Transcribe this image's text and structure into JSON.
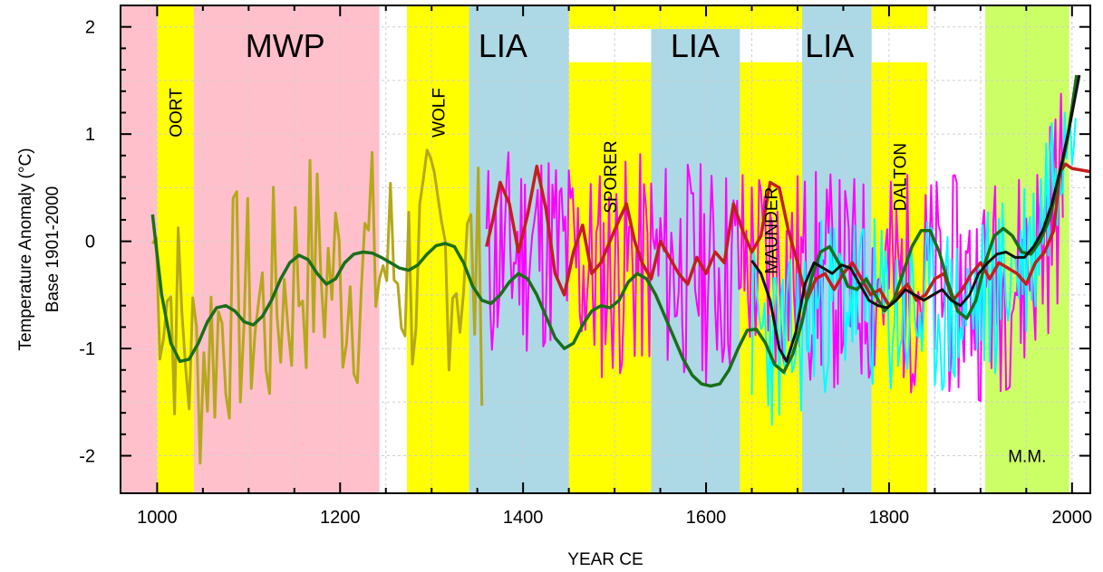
{
  "chart_data": {
    "type": "line",
    "title": "",
    "xlabel": "YEAR CE",
    "ylabel_line1": "Temperature Anomaly (°C)",
    "ylabel_line2": "Base 1901-2000",
    "xlim": [
      960,
      2020
    ],
    "ylim": [
      -2.35,
      2.2
    ],
    "x_ticks": [
      1000,
      1200,
      1400,
      1600,
      1800,
      2000
    ],
    "y_ticks": [
      -2,
      -1,
      0,
      1,
      2
    ],
    "grid": true,
    "legend": "none",
    "bands": [
      {
        "name": "",
        "start": 960,
        "end": 1000,
        "color": "#ffc0cb"
      },
      {
        "name": "OORT",
        "start": 1000,
        "end": 1040,
        "color": "#ffff00",
        "label_style": "vertical",
        "label_y": 1.2
      },
      {
        "name": "MWP",
        "start": 1040,
        "end": 1243,
        "color": "#ffc0cb",
        "label_style": "big",
        "label_year": 1140
      },
      {
        "name": "",
        "start": 1243,
        "end": 1273,
        "color": "#ffffff"
      },
      {
        "name": "WOLF",
        "start": 1273,
        "end": 1341,
        "color": "#ffff00",
        "label_style": "vertical",
        "label_y": 1.2
      },
      {
        "name": "LIA",
        "start": 1341,
        "end": 1450,
        "color": "#add8e6",
        "label_style": "big",
        "label_year": 1378
      },
      {
        "name": "SPORER",
        "start": 1450,
        "end": 1540,
        "color": "#ffff00",
        "top_y": 1.67,
        "label_style": "vertical",
        "label_y": 0.6
      },
      {
        "name": "LIA",
        "start": 1540,
        "end": 1637,
        "color": "#add8e6",
        "label_style": "big",
        "label_year": 1588
      },
      {
        "name": "MAUNDER",
        "start": 1637,
        "end": 1705,
        "color": "#ffff00",
        "top_y": 1.67,
        "label_style": "vertical",
        "label_y": 0.1
      },
      {
        "name": "LIA",
        "start": 1705,
        "end": 1781,
        "color": "#add8e6",
        "label_style": "big",
        "label_year": 1735
      },
      {
        "name": "DALTON",
        "start": 1781,
        "end": 1842,
        "color": "#ffff00",
        "top_y": 1.67,
        "label_style": "vertical",
        "label_y": 0.6
      },
      {
        "name": "",
        "start": 1842,
        "end": 1905,
        "color": "#ffffff"
      },
      {
        "name": "M.M.",
        "start": 1905,
        "end": 1997,
        "color": "#ccff66",
        "label_style": "small",
        "label_y": -2.0
      }
    ],
    "top_strips": [
      {
        "start": 1450,
        "end": 1637,
        "color": "#ffff00",
        "y_from": 2.2,
        "y_to": 1.98
      },
      {
        "start": 1637,
        "end": 1705,
        "color": "#ffff00",
        "y_from": 2.2,
        "y_to": 1.98
      },
      {
        "start": 1781,
        "end": 1842,
        "color": "#ffff00",
        "y_from": 2.2,
        "y_to": 1.98
      }
    ],
    "series": [
      {
        "color": "#b5a81a",
        "width": 3,
        "kind": "noise",
        "x_start": 995,
        "x_end": 1355,
        "step": 4,
        "amp": 1.15,
        "seed": 7,
        "anchors": [
          [
            995,
            0.0
          ],
          [
            1040,
            -1.2
          ],
          [
            1080,
            -0.6
          ],
          [
            1120,
            -0.7
          ],
          [
            1160,
            -0.2
          ],
          [
            1200,
            -0.35
          ],
          [
            1240,
            -0.2
          ],
          [
            1280,
            -0.3
          ],
          [
            1320,
            -0.1
          ],
          [
            1355,
            -0.4
          ]
        ]
      },
      {
        "color": "#ff00ff",
        "width": 2,
        "kind": "noise",
        "x_start": 1360,
        "x_end": 1990,
        "step": 2,
        "amp": 1.05,
        "seed": 11,
        "anchors": [
          [
            1360,
            -0.2
          ],
          [
            1420,
            0.0
          ],
          [
            1480,
            -0.3
          ],
          [
            1540,
            -0.2
          ],
          [
            1600,
            -0.3
          ],
          [
            1650,
            -0.2
          ],
          [
            1700,
            -0.3
          ],
          [
            1750,
            -0.4
          ],
          [
            1800,
            -0.35
          ],
          [
            1850,
            -0.4
          ],
          [
            1900,
            -0.45
          ],
          [
            1950,
            -0.3
          ],
          [
            1990,
            0.5
          ]
        ]
      },
      {
        "color": "#00ffff",
        "width": 2,
        "kind": "noise",
        "x_start": 1650,
        "x_end": 2005,
        "step": 2,
        "amp": 0.85,
        "seed": 23,
        "anchors": [
          [
            1650,
            -0.8
          ],
          [
            1690,
            -1.0
          ],
          [
            1720,
            -0.6
          ],
          [
            1760,
            -0.5
          ],
          [
            1800,
            -0.7
          ],
          [
            1850,
            -0.65
          ],
          [
            1880,
            -0.7
          ],
          [
            1920,
            -0.4
          ],
          [
            1960,
            0.0
          ],
          [
            1990,
            1.2
          ],
          [
            2005,
            1.7
          ]
        ]
      },
      {
        "color": "#c41e1e",
        "width": 3.5,
        "kind": "line",
        "points": [
          [
            1360,
            -0.05
          ],
          [
            1367,
            0.2
          ],
          [
            1375,
            0.55
          ],
          [
            1385,
            0.35
          ],
          [
            1395,
            -0.1
          ],
          [
            1405,
            0.25
          ],
          [
            1415,
            0.7
          ],
          [
            1425,
            0.3
          ],
          [
            1435,
            -0.3
          ],
          [
            1445,
            -0.5
          ],
          [
            1455,
            -0.1
          ],
          [
            1465,
            0.15
          ],
          [
            1475,
            -0.3
          ],
          [
            1485,
            -0.2
          ],
          [
            1495,
            0.0
          ],
          [
            1505,
            0.2
          ],
          [
            1513,
            0.35
          ],
          [
            1522,
            0.0
          ],
          [
            1530,
            -0.2
          ],
          [
            1540,
            -0.35
          ],
          [
            1550,
            0.0
          ],
          [
            1560,
            -0.15
          ],
          [
            1570,
            -0.3
          ],
          [
            1580,
            -0.4
          ],
          [
            1590,
            -0.15
          ],
          [
            1600,
            -0.3
          ],
          [
            1610,
            -0.1
          ],
          [
            1620,
            -0.2
          ],
          [
            1630,
            0.35
          ],
          [
            1640,
            0.1
          ],
          [
            1650,
            -0.1
          ],
          [
            1660,
            0.05
          ],
          [
            1670,
            0.55
          ],
          [
            1680,
            0.5
          ],
          [
            1690,
            0.1
          ],
          [
            1700,
            -0.2
          ],
          [
            1710,
            -0.55
          ],
          [
            1720,
            -0.35
          ],
          [
            1730,
            -0.3
          ],
          [
            1740,
            -0.45
          ],
          [
            1750,
            -0.3
          ],
          [
            1760,
            -0.2
          ],
          [
            1770,
            -0.35
          ],
          [
            1780,
            -0.5
          ],
          [
            1790,
            -0.45
          ],
          [
            1800,
            -0.6
          ],
          [
            1810,
            -0.5
          ],
          [
            1820,
            -0.4
          ],
          [
            1830,
            -0.55
          ],
          [
            1840,
            -0.5
          ],
          [
            1850,
            -0.35
          ],
          [
            1860,
            -0.3
          ],
          [
            1870,
            -0.55
          ],
          [
            1880,
            -0.45
          ],
          [
            1890,
            -0.3
          ],
          [
            1900,
            -0.2
          ],
          [
            1910,
            -0.35
          ],
          [
            1920,
            -0.2
          ],
          [
            1930,
            -0.25
          ],
          [
            1940,
            -0.3
          ],
          [
            1950,
            -0.4
          ],
          [
            1960,
            -0.2
          ],
          [
            1970,
            -0.1
          ],
          [
            1980,
            0.1
          ],
          [
            1987,
            0.65
          ],
          [
            1993,
            0.72
          ],
          [
            2000,
            0.68
          ],
          [
            2020,
            0.65
          ]
        ]
      },
      {
        "color": "#1a6e1a",
        "width": 3.5,
        "kind": "line",
        "points": [
          [
            995,
            0.25
          ],
          [
            1005,
            -0.5
          ],
          [
            1015,
            -0.95
          ],
          [
            1025,
            -1.12
          ],
          [
            1035,
            -1.1
          ],
          [
            1045,
            -0.95
          ],
          [
            1055,
            -0.75
          ],
          [
            1065,
            -0.62
          ],
          [
            1075,
            -0.6
          ],
          [
            1085,
            -0.65
          ],
          [
            1095,
            -0.75
          ],
          [
            1105,
            -0.78
          ],
          [
            1115,
            -0.7
          ],
          [
            1125,
            -0.55
          ],
          [
            1135,
            -0.35
          ],
          [
            1145,
            -0.2
          ],
          [
            1155,
            -0.13
          ],
          [
            1165,
            -0.17
          ],
          [
            1175,
            -0.3
          ],
          [
            1185,
            -0.4
          ],
          [
            1195,
            -0.35
          ],
          [
            1205,
            -0.2
          ],
          [
            1215,
            -0.12
          ],
          [
            1225,
            -0.1
          ],
          [
            1235,
            -0.11
          ],
          [
            1245,
            -0.15
          ],
          [
            1255,
            -0.2
          ],
          [
            1265,
            -0.25
          ],
          [
            1275,
            -0.27
          ],
          [
            1285,
            -0.22
          ],
          [
            1295,
            -0.12
          ],
          [
            1305,
            -0.04
          ],
          [
            1315,
            -0.02
          ],
          [
            1325,
            -0.05
          ],
          [
            1335,
            -0.2
          ],
          [
            1345,
            -0.42
          ],
          [
            1355,
            -0.55
          ],
          [
            1365,
            -0.58
          ],
          [
            1375,
            -0.5
          ],
          [
            1385,
            -0.38
          ],
          [
            1395,
            -0.3
          ],
          [
            1405,
            -0.35
          ],
          [
            1415,
            -0.5
          ],
          [
            1425,
            -0.7
          ],
          [
            1435,
            -0.9
          ],
          [
            1445,
            -1.0
          ],
          [
            1455,
            -0.95
          ],
          [
            1465,
            -0.78
          ],
          [
            1475,
            -0.65
          ],
          [
            1485,
            -0.6
          ],
          [
            1495,
            -0.62
          ],
          [
            1505,
            -0.55
          ],
          [
            1515,
            -0.38
          ],
          [
            1525,
            -0.3
          ],
          [
            1535,
            -0.35
          ],
          [
            1545,
            -0.5
          ],
          [
            1555,
            -0.7
          ],
          [
            1565,
            -0.9
          ],
          [
            1575,
            -1.1
          ],
          [
            1585,
            -1.25
          ],
          [
            1595,
            -1.33
          ],
          [
            1605,
            -1.35
          ],
          [
            1615,
            -1.33
          ],
          [
            1625,
            -1.2
          ],
          [
            1635,
            -1.0
          ],
          [
            1645,
            -0.83
          ],
          [
            1655,
            -0.82
          ],
          [
            1665,
            -0.95
          ],
          [
            1675,
            -1.15
          ],
          [
            1685,
            -1.22
          ],
          [
            1695,
            -1.05
          ],
          [
            1705,
            -0.75
          ],
          [
            1715,
            -0.35
          ],
          [
            1725,
            -0.1
          ],
          [
            1735,
            -0.05
          ],
          [
            1745,
            -0.2
          ],
          [
            1755,
            -0.42
          ],
          [
            1765,
            -0.45
          ],
          [
            1775,
            -0.35
          ],
          [
            1785,
            -0.5
          ],
          [
            1795,
            -0.65
          ],
          [
            1805,
            -0.55
          ],
          [
            1815,
            -0.3
          ],
          [
            1825,
            -0.05
          ],
          [
            1835,
            0.1
          ],
          [
            1845,
            0.1
          ],
          [
            1855,
            -0.1
          ],
          [
            1865,
            -0.4
          ],
          [
            1875,
            -0.65
          ],
          [
            1885,
            -0.72
          ],
          [
            1895,
            -0.55
          ],
          [
            1905,
            -0.2
          ],
          [
            1915,
            0.05
          ],
          [
            1925,
            0.12
          ],
          [
            1935,
            0.05
          ],
          [
            1945,
            -0.1
          ],
          [
            1955,
            -0.12
          ],
          [
            1965,
            0.0
          ],
          [
            1975,
            0.2
          ],
          [
            1985,
            0.55
          ],
          [
            1995,
            0.95
          ],
          [
            2005,
            1.55
          ]
        ]
      },
      {
        "color": "#111111",
        "width": 3,
        "kind": "line",
        "points": [
          [
            1650,
            -0.18
          ],
          [
            1660,
            -0.3
          ],
          [
            1670,
            -0.55
          ],
          [
            1680,
            -1.0
          ],
          [
            1688,
            -1.12
          ],
          [
            1698,
            -0.85
          ],
          [
            1708,
            -0.4
          ],
          [
            1718,
            -0.2
          ],
          [
            1728,
            -0.25
          ],
          [
            1738,
            -0.3
          ],
          [
            1748,
            -0.22
          ],
          [
            1758,
            -0.25
          ],
          [
            1768,
            -0.4
          ],
          [
            1778,
            -0.55
          ],
          [
            1788,
            -0.6
          ],
          [
            1798,
            -0.62
          ],
          [
            1808,
            -0.55
          ],
          [
            1818,
            -0.45
          ],
          [
            1828,
            -0.5
          ],
          [
            1838,
            -0.55
          ],
          [
            1848,
            -0.5
          ],
          [
            1858,
            -0.45
          ],
          [
            1868,
            -0.55
          ],
          [
            1878,
            -0.6
          ],
          [
            1888,
            -0.5
          ],
          [
            1898,
            -0.3
          ],
          [
            1908,
            -0.2
          ],
          [
            1918,
            -0.12
          ],
          [
            1928,
            -0.1
          ],
          [
            1938,
            -0.15
          ],
          [
            1948,
            -0.15
          ],
          [
            1958,
            -0.05
          ],
          [
            1968,
            0.1
          ],
          [
            1978,
            0.35
          ],
          [
            1988,
            0.7
          ],
          [
            1998,
            1.1
          ],
          [
            2008,
            1.55
          ]
        ]
      }
    ]
  }
}
